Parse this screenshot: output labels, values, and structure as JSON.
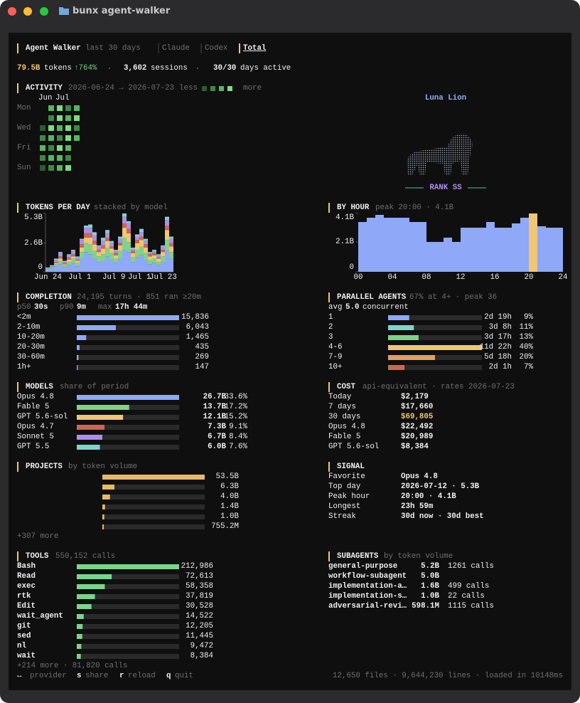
{
  "window_title": "bunx agent-walker",
  "header": {
    "app": "Agent Walker",
    "period": "last 30 days",
    "tabs": [
      "Claude",
      "Codex",
      "Total"
    ],
    "active_tab": 2
  },
  "summary": {
    "tokens": "79.5B",
    "tokens_label": "tokens",
    "growth": "↑764%",
    "sessions": "3,602",
    "sessions_label": "sessions",
    "days": "30/30",
    "days_label": "days active"
  },
  "activity": {
    "title": "ACTIVITY",
    "range": "2026-06-24 → 2026-07-23",
    "legend_less": "less",
    "legend_more": "more",
    "months": [
      "Jun",
      "Jul"
    ],
    "weekdays": [
      "Mon",
      "Wed",
      "Fri",
      "Sun"
    ],
    "level_colors": [
      "#1f3a24",
      "#2c5a33",
      "#3f8748",
      "#57b563",
      "#7fdc82"
    ],
    "weeks": [
      [
        null,
        null,
        1,
        2,
        3,
        2,
        1
      ],
      [
        3,
        2,
        4,
        3,
        2,
        3,
        2
      ],
      [
        4,
        4,
        3,
        2,
        4,
        3,
        3
      ],
      [
        2,
        3,
        4,
        4,
        3,
        2,
        4
      ],
      [
        3,
        4,
        2,
        3,
        null,
        null,
        null
      ]
    ]
  },
  "avatar": {
    "name": "Luna Lion",
    "rank": "RANK SS"
  },
  "tokens_per_day": {
    "title": "TOKENS PER DAY",
    "note": "stacked by model",
    "ylim": [
      0,
      5.3
    ],
    "yticks": [
      0,
      {
        "value": 2.6,
        "label": "2.6B"
      },
      {
        "value": 5.3,
        "label": "5.3B"
      }
    ],
    "x_labels": [
      "Jun 24",
      "Jul 1",
      "Jul 9",
      "Jul 1",
      "Jul 23"
    ],
    "series": [
      {
        "color": "#8fa8f8",
        "values": [
          0.2,
          0.3,
          0.5,
          0.7,
          0.4,
          0.6,
          0.8,
          0.5,
          1.2,
          1.8,
          1.6,
          1.2,
          0.9,
          1.0,
          1.4,
          1.1,
          0.8,
          1.2,
          2.0,
          1.8,
          0.9,
          1.3,
          1.5,
          1.1,
          0.7,
          0.8,
          0.6,
          0.9,
          1.9,
          1.2
        ]
      },
      {
        "color": "#7ed38a",
        "values": [
          0.1,
          0.1,
          0.2,
          0.3,
          0.2,
          0.3,
          0.4,
          0.3,
          0.6,
          0.8,
          0.9,
          0.7,
          0.5,
          0.6,
          0.8,
          0.6,
          0.4,
          0.7,
          1.1,
          0.9,
          0.4,
          0.7,
          0.8,
          0.6,
          0.4,
          0.4,
          0.3,
          0.5,
          1.0,
          0.6
        ]
      },
      {
        "color": "#f0c674",
        "values": [
          0,
          0,
          0.1,
          0.2,
          0.1,
          0.2,
          0.2,
          0.2,
          0.4,
          0.5,
          0.6,
          0.6,
          0.4,
          0.5,
          0.6,
          0.4,
          0.3,
          0.5,
          0.9,
          0.8,
          0.4,
          0.6,
          0.6,
          0.5,
          0.3,
          0.3,
          0.3,
          0.4,
          0.9,
          0.5
        ]
      },
      {
        "color": "#cc6655",
        "values": [
          0,
          0,
          0.1,
          0.2,
          0.1,
          0.2,
          0.2,
          0.1,
          0.3,
          0.4,
          0.4,
          0.3,
          0.2,
          0.3,
          0.3,
          0.2,
          0.2,
          0.2,
          0.4,
          0.4,
          0.2,
          0.3,
          0.3,
          0.3,
          0.2,
          0.2,
          0.1,
          0.2,
          0.4,
          0.3
        ]
      },
      {
        "color": "#b08ee8",
        "values": [
          0.1,
          0.1,
          0.2,
          0.3,
          0.1,
          0.2,
          0.3,
          0.2,
          0.4,
          0.5,
          0.5,
          0.5,
          0.3,
          0.4,
          0.4,
          0.3,
          0.2,
          0.4,
          0.6,
          0.5,
          0.2,
          0.3,
          0.4,
          0.3,
          0.1,
          0.2,
          0.2,
          0.3,
          0.5,
          0.4
        ]
      },
      {
        "color": "#7fd4c8",
        "values": [
          0,
          0.1,
          0.1,
          0.1,
          0.1,
          0.1,
          0.1,
          0.1,
          0.1,
          0.2,
          0.3,
          0.3,
          0.1,
          0.3,
          0.3,
          0.2,
          0.1,
          0.2,
          0.3,
          0.2,
          0.1,
          0.2,
          0.3,
          0.2,
          0.1,
          0.1,
          0.1,
          0.1,
          0.3,
          0.2
        ]
      }
    ]
  },
  "by_hour": {
    "title": "BY HOUR",
    "note": "peak 20:00 · 4.1B",
    "ylim": [
      0,
      4.1
    ],
    "yticks": [
      0,
      {
        "value": 2.1,
        "label": "2.1B"
      },
      {
        "value": 4.1,
        "label": "4.1B"
      }
    ],
    "x_labels": [
      "00",
      "04",
      "08",
      "12",
      "16",
      "20",
      "24"
    ],
    "color": "#8fa8f8",
    "peak_color": "#f0c674",
    "values": [
      3.5,
      3.8,
      4.0,
      3.8,
      3.8,
      3.8,
      3.5,
      3.5,
      2.1,
      2.1,
      2.4,
      2.1,
      3.1,
      3.1,
      3.1,
      3.5,
      3.1,
      3.1,
      3.4,
      3.8,
      4.1,
      3.2,
      3.1,
      3.1
    ]
  },
  "completion": {
    "title": "COMPLETION",
    "note": "24,195 turns · 851 ran ≥20m",
    "color": "#8fa8f8",
    "stats": [
      {
        "label": "p50",
        "value": "30s"
      },
      {
        "label": "p90",
        "value": "9m"
      },
      {
        "label": "max",
        "value": "17h 44m"
      }
    ],
    "rows": [
      {
        "label": "<2m",
        "value": 15836,
        "value_label": "15,836"
      },
      {
        "label": "2-10m",
        "value": 6043,
        "value_label": "6,043"
      },
      {
        "label": "10-20m",
        "value": 1465,
        "value_label": "1,465"
      },
      {
        "label": "20-30m",
        "value": 435,
        "value_label": "435"
      },
      {
        "label": "30-60m",
        "value": 269,
        "value_label": "269"
      },
      {
        "label": "1h+",
        "value": 147,
        "value_label": "147"
      }
    ]
  },
  "parallel": {
    "title": "PARALLEL AGENTS",
    "note": "67% at 4+ · peak 36",
    "avg_prefix": "avg",
    "avg": "5.0",
    "avg_suffix": "concurrent",
    "rows": [
      {
        "label": "1",
        "time": "2d 19h",
        "pct": 9,
        "pct_label": "9%",
        "color": "#8fa8f8"
      },
      {
        "label": "2",
        "time": "3d 8h",
        "pct": 11,
        "pct_label": "11%",
        "color": "#7fd4c8"
      },
      {
        "label": "3",
        "time": "3d 17h",
        "pct": 13,
        "pct_label": "13%",
        "color": "#7ed38a"
      },
      {
        "label": "4-6",
        "time": "11d 22h",
        "pct": 40,
        "pct_label": "40%",
        "color": "#f0c674"
      },
      {
        "label": "7-9",
        "time": "5d 18h",
        "pct": 20,
        "pct_label": "20%",
        "color": "#e0a060"
      },
      {
        "label": "10+",
        "time": "2d 1h",
        "pct": 7,
        "pct_label": "7%",
        "color": "#cc6655"
      }
    ]
  },
  "models": {
    "title": "MODELS",
    "note": "share of period",
    "rows": [
      {
        "name": "Opus 4.8",
        "tokens": 26.7,
        "tokens_label": "26.7B",
        "share": 33.6,
        "share_label": "33.6%",
        "color": "#8fa8f8"
      },
      {
        "name": "Fable 5",
        "tokens": 13.7,
        "tokens_label": "13.7B",
        "share": 17.2,
        "share_label": "17.2%",
        "color": "#7ed38a"
      },
      {
        "name": "GPT 5.6-sol",
        "tokens": 12.1,
        "tokens_label": "12.1B",
        "share": 15.2,
        "share_label": "15.2%",
        "color": "#f0c674"
      },
      {
        "name": "Opus 4.7",
        "tokens": 7.3,
        "tokens_label": "7.3B",
        "share": 9.1,
        "share_label": "9.1%",
        "color": "#cc6655"
      },
      {
        "name": "Sonnet 5",
        "tokens": 6.7,
        "tokens_label": "6.7B",
        "share": 8.4,
        "share_label": "8.4%",
        "color": "#b08ee8"
      },
      {
        "name": "GPT 5.5",
        "tokens": 6.0,
        "tokens_label": "6.0B",
        "share": 7.6,
        "share_label": "7.6%",
        "color": "#7fd4c8"
      }
    ]
  },
  "cost": {
    "title": "COST",
    "note": "api-equivalent · rates 2026-07-23",
    "highlight_row": 2,
    "rows": [
      [
        "Today",
        "$2,179"
      ],
      [
        "7 days",
        "$17,660"
      ],
      [
        "30 days",
        "$69,805"
      ],
      [
        "Opus 4.8",
        "$22,492"
      ],
      [
        "Fable 5",
        "$20,989"
      ],
      [
        "GPT 5.6-sol",
        "$8,384"
      ]
    ]
  },
  "projects": {
    "title": "PROJECTS",
    "note": "by token volume",
    "color": "#e8b86a",
    "more": "+307 more",
    "rows": [
      {
        "tokens": 53500000000,
        "label": "53.5B"
      },
      {
        "tokens": 6300000000,
        "label": "6.3B"
      },
      {
        "tokens": 4000000000,
        "label": "4.0B"
      },
      {
        "tokens": 1400000000,
        "label": "1.4B"
      },
      {
        "tokens": 1000000000,
        "label": "1.0B"
      },
      {
        "tokens": 755200000,
        "label": "755.2M"
      }
    ]
  },
  "signal": {
    "title": "SIGNAL",
    "rows": [
      [
        "Favorite",
        "Opus 4.8"
      ],
      [
        "Top day",
        "2026-07-12 · 5.3B"
      ],
      [
        "Peak hour",
        "20:00 · 4.1B"
      ],
      [
        "Longest",
        "23h 59m"
      ],
      [
        "Streak",
        "30d now · 30d best"
      ]
    ]
  },
  "tools": {
    "title": "TOOLS",
    "note": "550,152 calls",
    "color": "#7ed38a",
    "more": "+214 more · 81,820 calls",
    "rows": [
      {
        "name": "Bash",
        "calls": 212986,
        "label": "212,986"
      },
      {
        "name": "Read",
        "calls": 72613,
        "label": "72,613"
      },
      {
        "name": "exec",
        "calls": 58358,
        "label": "58,358"
      },
      {
        "name": "rtk",
        "calls": 37819,
        "label": "37,819"
      },
      {
        "name": "Edit",
        "calls": 30528,
        "label": "30,528"
      },
      {
        "name": "wait_agent",
        "calls": 14522,
        "label": "14,522"
      },
      {
        "name": "git",
        "calls": 12205,
        "label": "12,205"
      },
      {
        "name": "sed",
        "calls": 11445,
        "label": "11,445"
      },
      {
        "name": "nl",
        "calls": 9472,
        "label": "9,472"
      },
      {
        "name": "wait",
        "calls": 8384,
        "label": "8,384"
      }
    ]
  },
  "subagents": {
    "title": "SUBAGENTS",
    "note": "by token volume",
    "rows": [
      {
        "name": "general-purpose",
        "tokens": "5.2B",
        "calls": "1261 calls"
      },
      {
        "name": "workflow-subagent",
        "tokens": "5.0B"
      },
      {
        "name": "implementation-a…",
        "tokens": "1.6B",
        "calls": "499 calls"
      },
      {
        "name": "implementation-s…",
        "tokens": "1.0B",
        "calls": "22 calls"
      },
      {
        "name": "adversarial-revi…",
        "tokens": "598.1M",
        "calls": "1115 calls"
      }
    ]
  },
  "footer": {
    "keys": [
      {
        "key": "↔",
        "action": "provider"
      },
      {
        "key": "s",
        "action": "share"
      },
      {
        "key": "r",
        "action": "reload"
      },
      {
        "key": "q",
        "action": "quit"
      }
    ],
    "status": "12,650 files · 9,644,230 lines · loaded in 10148ms"
  }
}
